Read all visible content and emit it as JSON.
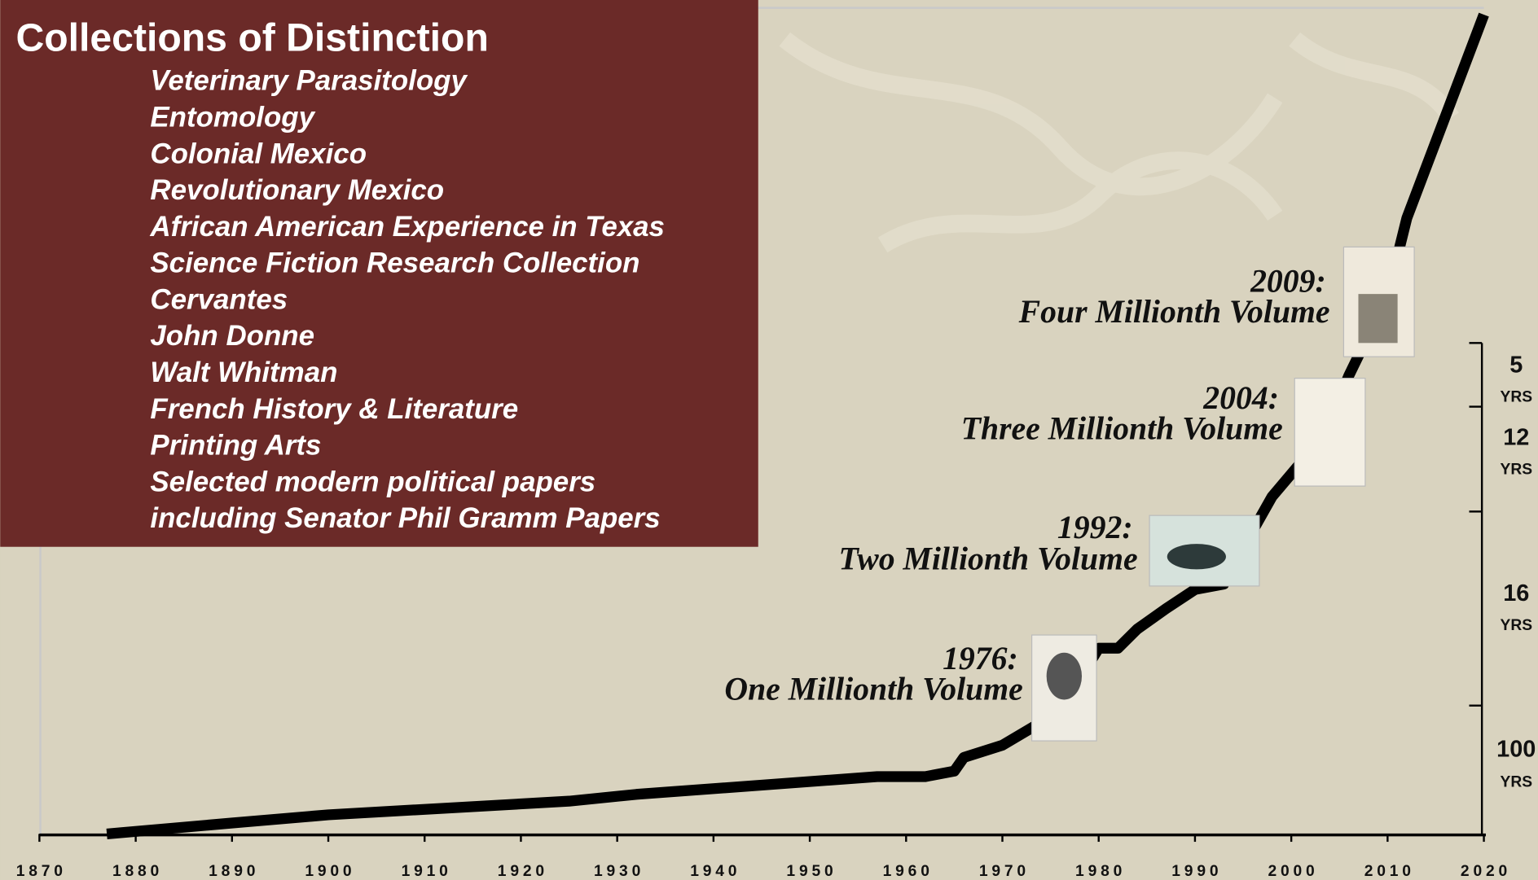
{
  "chart_data": {
    "type": "line",
    "title": "Collections of Distinction",
    "collections": [
      "Veterinary Parasitology",
      "Entomology",
      "Colonial Mexico",
      "Revolutionary Mexico",
      "African American Experience in Texas",
      "Science Fiction Research Collection",
      "Cervantes",
      "John Donne",
      "Walt Whitman",
      "French History & Literature",
      "Printing Arts",
      "Selected modern political papers",
      "including Senator Phil Gramm Papers"
    ],
    "x": [
      1877,
      1890,
      1900,
      1925,
      1932,
      1957,
      1962,
      1965,
      1966,
      1970,
      1976,
      1980,
      1982,
      1984,
      1987,
      1990,
      1993,
      1996,
      1998,
      2001,
      2003,
      2006,
      2010,
      2012,
      2020
    ],
    "values": [
      0,
      0.08,
      0.14,
      0.24,
      0.29,
      0.42,
      0.42,
      0.46,
      0.56,
      0.65,
      0.9,
      1.36,
      1.36,
      1.5,
      1.65,
      1.79,
      1.83,
      2.22,
      2.47,
      2.72,
      2.85,
      3.36,
      3.94,
      4.51,
      6.0
    ],
    "color": "#000000",
    "xlim": [
      1870,
      2020
    ],
    "xticks": [
      1870,
      1880,
      1890,
      1900,
      1910,
      1920,
      1930,
      1940,
      1950,
      1960,
      1970,
      1980,
      1990,
      2000,
      2010,
      2020
    ],
    "ylim": [
      0,
      6.05
    ],
    "annotations": [
      {
        "year": "1976:",
        "text": "One Millionth Volume"
      },
      {
        "year": "1992:",
        "text": "Two Millionth Volume"
      },
      {
        "year": "2004:",
        "text": "Three Millionth Volume"
      },
      {
        "year": "2009:",
        "text": "Four Millionth Volume"
      }
    ],
    "intervals": [
      {
        "value": "5",
        "unit": "YRS"
      },
      {
        "value": "12",
        "unit": "YRS"
      },
      {
        "value": "16",
        "unit": "YRS"
      },
      {
        "value": "100",
        "unit": "YRS"
      }
    ]
  }
}
